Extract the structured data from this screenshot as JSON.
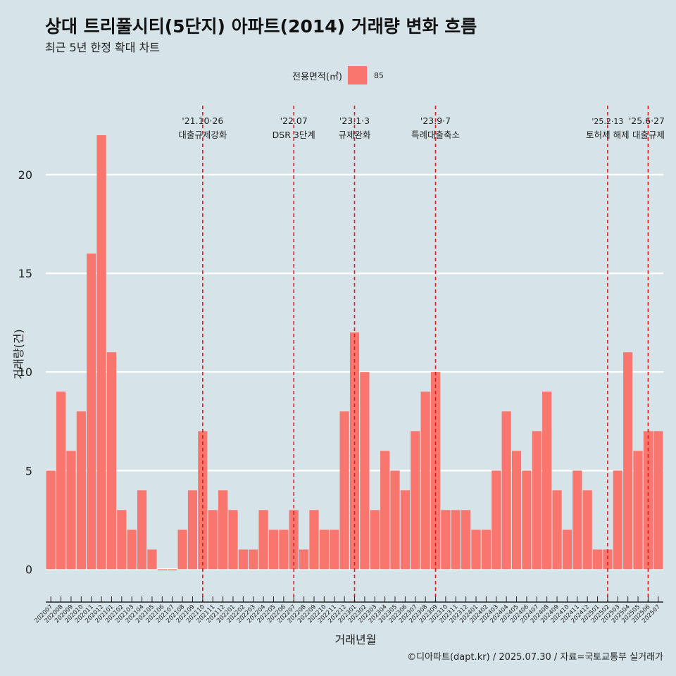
{
  "title": "상대 트리풀시티(5단지) 아파트(2014) 거래량 변화 흐름",
  "subtitle": "최근 5년 한정 확대 차트",
  "legend": {
    "title": "전용면적(㎡)",
    "label": "85",
    "color": "#f8766d"
  },
  "caption": "©디아파트(dapt.kr) / 2025.07.30 / 자료=국토교통부 실거래가",
  "colors": {
    "background": "#d6e4ea",
    "bar": "#f8766d",
    "grid": "#ffffff",
    "event_line": "#e31a1c"
  },
  "chart_data": {
    "type": "bar",
    "xlabel": "거래년월",
    "ylabel": "거래량(건)",
    "ylim": [
      -1.2,
      23.5
    ],
    "yticks": [
      0,
      5,
      10,
      15,
      20
    ],
    "grid": "horizontal major lines",
    "legend_position": "top",
    "categories": [
      "202007",
      "202008",
      "202009",
      "202010",
      "202011",
      "202012",
      "202101",
      "202102",
      "202103",
      "202104",
      "202105",
      "202106",
      "202107",
      "202108",
      "202109",
      "202110",
      "202111",
      "202112",
      "202201",
      "202202",
      "202203",
      "202204",
      "202205",
      "202206",
      "202207",
      "202208",
      "202209",
      "202210",
      "202211",
      "202212",
      "202301",
      "202302",
      "202303",
      "202304",
      "202305",
      "202306",
      "202307",
      "202308",
      "202309",
      "202310",
      "202311",
      "202312",
      "202401",
      "202402",
      "202403",
      "202404",
      "202405",
      "202406",
      "202407",
      "202408",
      "202409",
      "202410",
      "202411",
      "202412",
      "202501",
      "202502",
      "202503",
      "202504",
      "202505",
      "202506",
      "202507"
    ],
    "series": [
      {
        "name": "85",
        "values": [
          5,
          9,
          6,
          8,
          16,
          22,
          11,
          3,
          2,
          4,
          1,
          0,
          0,
          2,
          4,
          7,
          3,
          4,
          3,
          1,
          1,
          3,
          2,
          2,
          3,
          1,
          3,
          2,
          2,
          8,
          12,
          10,
          3,
          6,
          5,
          4,
          7,
          9,
          10,
          3,
          3,
          3,
          2,
          2,
          5,
          8,
          6,
          5,
          7,
          9,
          4,
          2,
          5,
          4,
          1,
          1,
          5,
          11,
          6,
          7,
          7
        ]
      }
    ],
    "events": [
      {
        "category": "202110",
        "date": "'21.10·26",
        "label": "대출규제강화"
      },
      {
        "category": "202207",
        "date": "'22.07",
        "label": "DSR 3단계"
      },
      {
        "category": "202301",
        "date": "'23.1·3",
        "label": "규제완화"
      },
      {
        "category": "202309",
        "date": "'23.9·7",
        "label": "특례대출축소"
      },
      {
        "category": "202502",
        "date": "'25.2·13",
        "label": "토허제 해제"
      },
      {
        "category": "202506",
        "date": "'25.6·27",
        "label": "대출규제"
      }
    ]
  }
}
